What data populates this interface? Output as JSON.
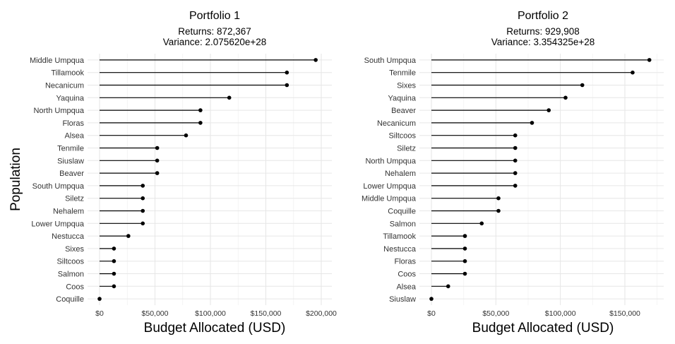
{
  "y_axis_title": "Population",
  "chart_data": [
    {
      "type": "lollipop",
      "title": "Portfolio 1",
      "subtitle_lines": [
        "Returns: 872,367",
        "Variance: 2.075620e+28"
      ],
      "xlabel": "Budget Allocated (USD)",
      "ylabel": "Population",
      "xlim": [
        0,
        200000
      ],
      "x_ticks": [
        0,
        50000,
        100000,
        150000,
        200000
      ],
      "x_tick_labels": [
        "$0",
        "$50,000",
        "$100,000",
        "$150,000",
        "$200,000"
      ],
      "grid": true,
      "categories": [
        "Middle Umpqua",
        "Tillamook",
        "Necanicum",
        "Yaquina",
        "North Umpqua",
        "Floras",
        "Alsea",
        "Tenmile",
        "Siuslaw",
        "Beaver",
        "South Umpqua",
        "Siletz",
        "Nehalem",
        "Lower Umpqua",
        "Nestucca",
        "Sixes",
        "Siltcoos",
        "Salmon",
        "Coos",
        "Coquille"
      ],
      "values": [
        195000,
        169000,
        169000,
        117000,
        91000,
        91000,
        78000,
        52000,
        52000,
        52000,
        39000,
        39000,
        39000,
        39000,
        26000,
        13000,
        13000,
        13000,
        13000,
        0
      ]
    },
    {
      "type": "lollipop",
      "title": "Portfolio 2",
      "subtitle_lines": [
        "Returns: 929,908",
        "Variance: 3.354325e+28"
      ],
      "xlabel": "Budget Allocated (USD)",
      "ylabel": "",
      "xlim": [
        0,
        170000
      ],
      "x_ticks": [
        0,
        50000,
        100000,
        150000
      ],
      "x_tick_labels": [
        "$0",
        "$50,000",
        "$100,000",
        "$150,000"
      ],
      "grid": true,
      "categories": [
        "South Umpqua",
        "Tenmile",
        "Sixes",
        "Yaquina",
        "Beaver",
        "Necanicum",
        "Siltcoos",
        "Siletz",
        "North Umpqua",
        "Nehalem",
        "Lower Umpqua",
        "Middle Umpqua",
        "Coquille",
        "Salmon",
        "Tillamook",
        "Nestucca",
        "Floras",
        "Coos",
        "Alsea",
        "Siuslaw"
      ],
      "values": [
        169000,
        156000,
        117000,
        104000,
        91000,
        78000,
        65000,
        65000,
        65000,
        65000,
        65000,
        52000,
        52000,
        39000,
        26000,
        26000,
        26000,
        26000,
        13000,
        0
      ]
    }
  ]
}
